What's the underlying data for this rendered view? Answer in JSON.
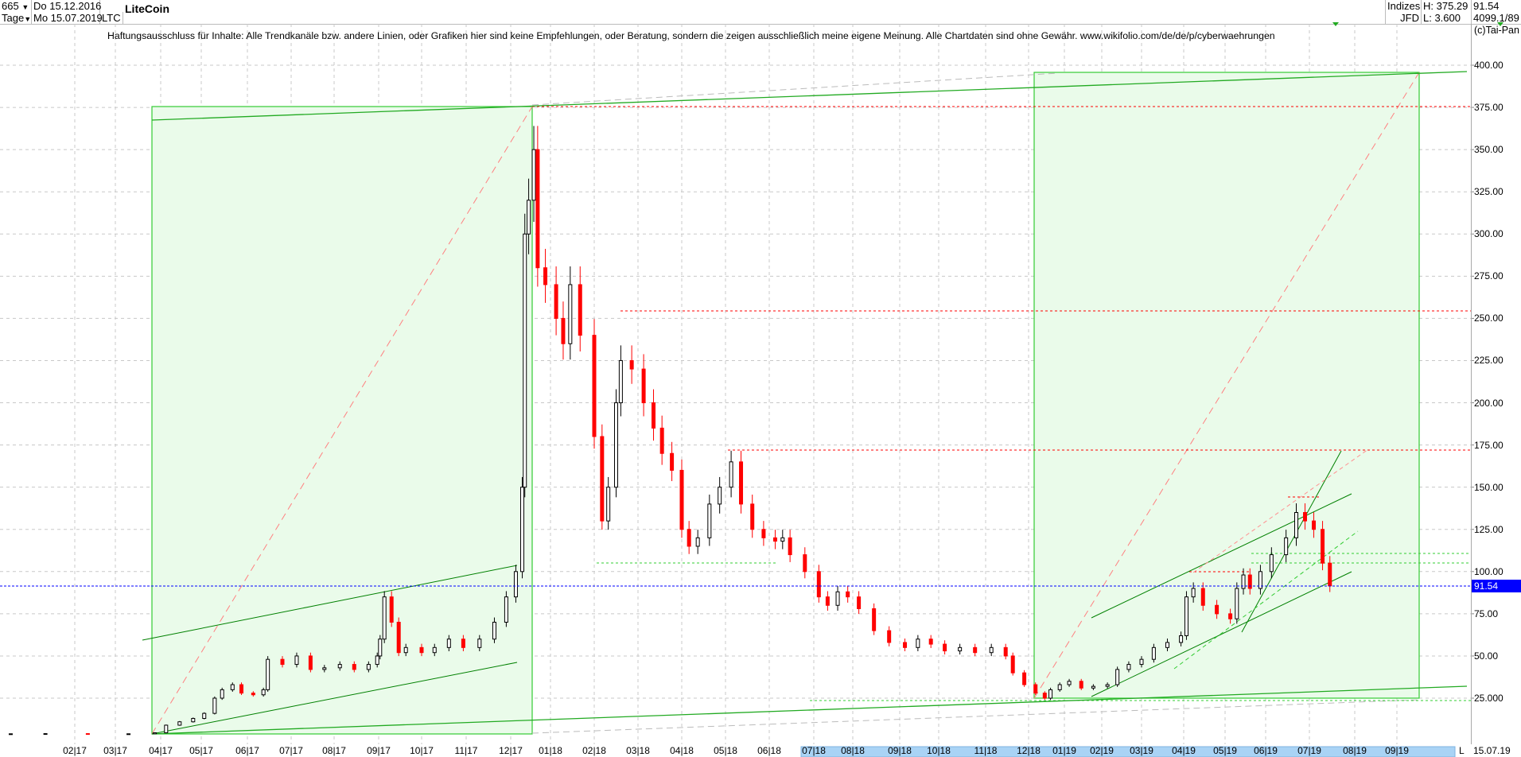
{
  "header": {
    "bars_count": "665",
    "bars_dropdown_icon": "caret-down-icon",
    "period": "Tage",
    "start_date": "Do 15.12.2016",
    "end_date": "Mo 15.07.2019",
    "symbol": "LTC",
    "title": "LiteCoin",
    "market_line1": "Indizes",
    "market_line2": "JFD",
    "high": "H: 375.29",
    "low": "L: 3.600",
    "last": "91.54",
    "info": "4099.1/89",
    "copyright": "(c)Tai-Pan"
  },
  "disclaimer": "Haftungsausschluss für Inhalte: Alle Trendkanäle bzw. andere Linien, oder Grafiken hier sind keine Empfehlungen, oder Beratung, sondern die zeigen ausschließlich meine eigene Meinung. Alle Chartdaten sind ohne Gewähr.  www.wikifolio.com/de/de/p/cyberwaehrungen",
  "footer": {
    "scroll_mode": "L",
    "last_date": "15.07.19"
  },
  "colors": {
    "up": "#000000",
    "down": "#ff0000",
    "last_price_line": "#0000ff",
    "box_fill": "#eafbea",
    "box_stroke": "#33cc33",
    "trendline": "#008000",
    "resistance": "#ff0000",
    "timeline_highlight": "#a9d3f5"
  },
  "chart_data": {
    "type": "candlestick",
    "ylim": [
      0,
      400
    ],
    "y_ticks": [
      "25.000",
      "50.00",
      "75.00",
      "100.00",
      "125.00",
      "150.00",
      "175.00",
      "200.00",
      "225.00",
      "250.00",
      "275.00",
      "300.00",
      "325.00",
      "350.00",
      "375.00",
      "400.00"
    ],
    "x_ticks": [
      "02|17",
      "03|17",
      "04|17",
      "05|17",
      "06|17",
      "07|17",
      "08|17",
      "09|17",
      "10|17",
      "11|17",
      "12|17",
      "01|18",
      "02|18",
      "03|18",
      "04|18",
      "05|18",
      "06|18",
      "07|18",
      "08|18",
      "09|18",
      "10|18",
      "11|18",
      "12|18",
      "01|19",
      "02|19",
      "03|19",
      "04|19",
      "05|19",
      "06|19",
      "07|19",
      "08|19",
      "09|19"
    ],
    "grid": true,
    "last_price_label": "91.54",
    "last_price": 91.54,
    "horizontal_levels": [
      375.29,
      253,
      172
    ],
    "closes": [
      [
        "2016-12-15",
        3.9
      ],
      [
        "2017-01-10",
        4.0
      ],
      [
        "2017-02-10",
        3.8
      ],
      [
        "2017-03-10",
        3.9
      ],
      [
        "2017-03-28",
        4.5
      ],
      [
        "2017-04-05",
        9
      ],
      [
        "2017-04-15",
        11
      ],
      [
        "2017-04-25",
        13
      ],
      [
        "2017-05-03",
        16
      ],
      [
        "2017-05-10",
        25
      ],
      [
        "2017-05-15",
        30
      ],
      [
        "2017-05-22",
        33
      ],
      [
        "2017-05-28",
        28
      ],
      [
        "2017-06-05",
        27
      ],
      [
        "2017-06-12",
        30
      ],
      [
        "2017-06-15",
        48
      ],
      [
        "2017-06-25",
        45
      ],
      [
        "2017-07-05",
        50
      ],
      [
        "2017-07-15",
        42
      ],
      [
        "2017-07-25",
        43
      ],
      [
        "2017-08-05",
        45
      ],
      [
        "2017-08-15",
        42
      ],
      [
        "2017-08-25",
        45
      ],
      [
        "2017-08-31",
        50
      ],
      [
        "2017-09-02",
        60
      ],
      [
        "2017-09-05",
        85
      ],
      [
        "2017-09-10",
        70
      ],
      [
        "2017-09-15",
        52
      ],
      [
        "2017-09-20",
        55
      ],
      [
        "2017-10-01",
        52
      ],
      [
        "2017-10-10",
        55
      ],
      [
        "2017-10-20",
        60
      ],
      [
        "2017-10-30",
        55
      ],
      [
        "2017-11-10",
        60
      ],
      [
        "2017-11-20",
        70
      ],
      [
        "2017-11-28",
        85
      ],
      [
        "2017-12-05",
        100
      ],
      [
        "2017-12-10",
        150
      ],
      [
        "2017-12-12",
        300
      ],
      [
        "2017-12-15",
        320
      ],
      [
        "2017-12-19",
        350
      ],
      [
        "2017-12-22",
        280
      ],
      [
        "2017-12-28",
        270
      ],
      [
        "2018-01-05",
        250
      ],
      [
        "2018-01-10",
        235
      ],
      [
        "2018-01-15",
        270
      ],
      [
        "2018-01-22",
        240
      ],
      [
        "2018-02-01",
        180
      ],
      [
        "2018-02-06",
        130
      ],
      [
        "2018-02-10",
        150
      ],
      [
        "2018-02-15",
        200
      ],
      [
        "2018-02-18",
        225
      ],
      [
        "2018-02-25",
        220
      ],
      [
        "2018-03-05",
        200
      ],
      [
        "2018-03-12",
        185
      ],
      [
        "2018-03-18",
        170
      ],
      [
        "2018-03-25",
        160
      ],
      [
        "2018-04-01",
        125
      ],
      [
        "2018-04-06",
        115
      ],
      [
        "2018-04-12",
        120
      ],
      [
        "2018-04-20",
        140
      ],
      [
        "2018-04-27",
        150
      ],
      [
        "2018-05-05",
        165
      ],
      [
        "2018-05-12",
        140
      ],
      [
        "2018-05-20",
        125
      ],
      [
        "2018-05-28",
        120
      ],
      [
        "2018-06-05",
        118
      ],
      [
        "2018-06-10",
        120
      ],
      [
        "2018-06-15",
        110
      ],
      [
        "2018-06-25",
        100
      ],
      [
        "2018-07-05",
        85
      ],
      [
        "2018-07-12",
        80
      ],
      [
        "2018-07-20",
        88
      ],
      [
        "2018-07-28",
        85
      ],
      [
        "2018-08-05",
        78
      ],
      [
        "2018-08-15",
        65
      ],
      [
        "2018-08-25",
        58
      ],
      [
        "2018-09-05",
        55
      ],
      [
        "2018-09-15",
        60
      ],
      [
        "2018-09-25",
        57
      ],
      [
        "2018-10-05",
        53
      ],
      [
        "2018-10-15",
        55
      ],
      [
        "2018-10-25",
        52
      ],
      [
        "2018-11-05",
        55
      ],
      [
        "2018-11-15",
        50
      ],
      [
        "2018-11-20",
        40
      ],
      [
        "2018-11-28",
        33
      ],
      [
        "2018-12-07",
        28
      ],
      [
        "2018-12-15",
        25
      ],
      [
        "2018-12-20",
        30
      ],
      [
        "2018-12-28",
        33
      ],
      [
        "2019-01-05",
        35
      ],
      [
        "2019-01-15",
        31
      ],
      [
        "2019-01-25",
        32
      ],
      [
        "2019-02-05",
        33
      ],
      [
        "2019-02-12",
        42
      ],
      [
        "2019-02-20",
        45
      ],
      [
        "2019-03-01",
        48
      ],
      [
        "2019-03-10",
        55
      ],
      [
        "2019-03-20",
        58
      ],
      [
        "2019-03-30",
        62
      ],
      [
        "2019-04-03",
        85
      ],
      [
        "2019-04-08",
        90
      ],
      [
        "2019-04-15",
        80
      ],
      [
        "2019-04-25",
        75
      ],
      [
        "2019-05-05",
        72
      ],
      [
        "2019-05-10",
        90
      ],
      [
        "2019-05-15",
        98
      ],
      [
        "2019-05-20",
        90
      ],
      [
        "2019-05-28",
        100
      ],
      [
        "2019-06-05",
        110
      ],
      [
        "2019-06-15",
        120
      ],
      [
        "2019-06-22",
        135
      ],
      [
        "2019-06-28",
        130
      ],
      [
        "2019-07-04",
        125
      ],
      [
        "2019-07-10",
        105
      ],
      [
        "2019-07-15",
        91.54
      ]
    ]
  }
}
